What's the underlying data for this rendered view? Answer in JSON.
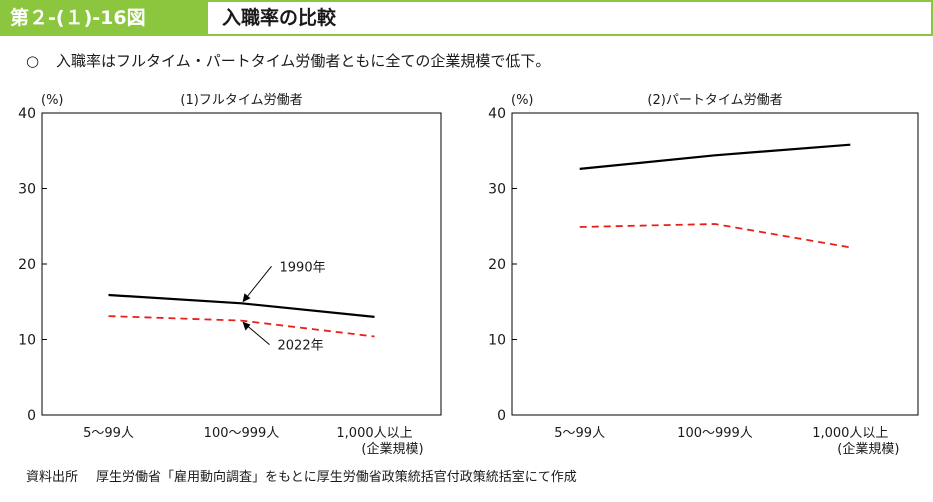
{
  "header": {
    "figure_number": "第２-(１)-16図",
    "title": "入職率の比較"
  },
  "summary": {
    "bullet": "○",
    "text": "入職率はフルタイム・パートタイム労働者ともに全ての企業規模で低下。"
  },
  "colors": {
    "accent": "#8cc63f",
    "series_1990": "#000000",
    "series_2022": "#e8201c"
  },
  "chart_data": [
    {
      "type": "line",
      "title": "(1)フルタイム労働者",
      "ylabel": "(%)",
      "xlabel_note": "(企業規模)",
      "categories": [
        "5～99人",
        "100～999人",
        "1,000人以上"
      ],
      "ylim": [
        0,
        40
      ],
      "yticks": [
        0,
        10,
        20,
        30,
        40
      ],
      "series": [
        {
          "name": "1990年",
          "style": "solid",
          "values": [
            15.9,
            14.8,
            13.0
          ]
        },
        {
          "name": "2022年",
          "style": "dashed",
          "values": [
            13.1,
            12.5,
            10.4
          ]
        }
      ]
    },
    {
      "type": "line",
      "title": "(2)パートタイム労働者",
      "ylabel": "(%)",
      "xlabel_note": "(企業規模)",
      "categories": [
        "5～99人",
        "100～999人",
        "1,000人以上"
      ],
      "ylim": [
        0,
        40
      ],
      "yticks": [
        0,
        10,
        20,
        30,
        40
      ],
      "series": [
        {
          "name": "",
          "style": "solid",
          "values": [
            32.6,
            34.4,
            35.8
          ]
        },
        {
          "name": "",
          "style": "dashed",
          "values": [
            24.9,
            25.3,
            22.2
          ]
        }
      ]
    }
  ],
  "source": {
    "label": "資料出所",
    "text": "厚生労働省「雇用動向調査」をもとに厚生労働省政策統括官付政策統括室にて作成"
  }
}
